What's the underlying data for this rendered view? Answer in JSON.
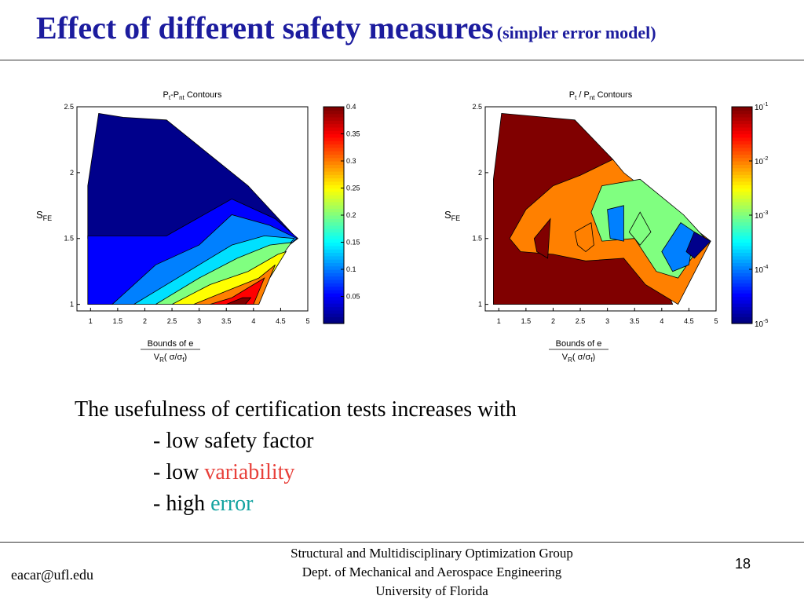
{
  "slide": {
    "title": "Effect of different safety measures",
    "subtitle": "(simpler error model)",
    "intro": "The usefulness of certification tests increases with",
    "bullets": [
      {
        "dash": "-",
        "text": "low safety factor",
        "highlight": ""
      },
      {
        "dash": "-",
        "text": "low",
        "highlight": "variability",
        "highlight_color": "#e8403a"
      },
      {
        "dash": "-",
        "text": "high",
        "highlight": "error",
        "highlight_color": "#13a3a0"
      }
    ],
    "footer": {
      "email": "eacar@ufl.edu",
      "org_line1": "Structural and Multidisciplinary Optimization Group",
      "org_line2": "Dept. of Mechanical and Aerospace Engineering",
      "org_line3": "University of Florida",
      "page": "18"
    }
  },
  "chart_data": [
    {
      "type": "heatmap",
      "title_parts": [
        "P",
        "t",
        "-P",
        "nt",
        "  Contours"
      ],
      "ylabel_parts": [
        "S",
        "FE"
      ],
      "xlabel1": "Bounds of e",
      "xlabel2_parts": [
        "V",
        "R",
        "( σ/σ",
        "f",
        ")"
      ],
      "xlim": [
        0.75,
        5
      ],
      "ylim": [
        0.95,
        2.5
      ],
      "xticks": [
        "1",
        "1.5",
        "2",
        "2.5",
        "3",
        "3.5",
        "4",
        "4.5",
        "5"
      ],
      "yticks": [
        "1",
        "1.5",
        "2",
        "2.5"
      ],
      "colorbar": {
        "scale": "linear",
        "range": [
          0,
          0.4
        ],
        "tick_labels": [
          "0.4",
          "0.35",
          "0.3",
          "0.25",
          "0.2",
          "0.15",
          "0.1",
          "0.05"
        ]
      },
      "regions": [
        {
          "level": 0.02,
          "color": "#00008b",
          "points": [
            [
              0.95,
              1.9
            ],
            [
              1.15,
              2.45
            ],
            [
              1.6,
              2.42
            ],
            [
              2.4,
              2.4
            ],
            [
              3.9,
              1.9
            ],
            [
              4.8,
              1.5
            ],
            [
              0.95,
              1.5
            ]
          ]
        },
        {
          "level": 0.06,
          "color": "#0000ff",
          "points": [
            [
              0.95,
              1.52
            ],
            [
              2.4,
              1.52
            ],
            [
              3.6,
              1.8
            ],
            [
              4.4,
              1.65
            ],
            [
              4.82,
              1.5
            ],
            [
              3.2,
              1.0
            ],
            [
              0.95,
              1.0
            ]
          ]
        },
        {
          "level": 0.1,
          "color": "#0080ff",
          "points": [
            [
              1.4,
              1.0
            ],
            [
              2.2,
              1.3
            ],
            [
              3.0,
              1.45
            ],
            [
              3.6,
              1.68
            ],
            [
              4.3,
              1.6
            ],
            [
              4.8,
              1.5
            ],
            [
              3.4,
              1.0
            ]
          ]
        },
        {
          "level": 0.15,
          "color": "#00e0ff",
          "points": [
            [
              1.8,
              1.0
            ],
            [
              2.8,
              1.25
            ],
            [
              3.6,
              1.45
            ],
            [
              4.2,
              1.52
            ],
            [
              4.75,
              1.5
            ],
            [
              3.7,
              1.0
            ]
          ]
        },
        {
          "level": 0.2,
          "color": "#80ff80",
          "points": [
            [
              2.2,
              1.0
            ],
            [
              3.0,
              1.2
            ],
            [
              3.7,
              1.35
            ],
            [
              4.3,
              1.45
            ],
            [
              4.7,
              1.47
            ],
            [
              3.9,
              1.0
            ]
          ]
        },
        {
          "level": 0.25,
          "color": "#ffff00",
          "points": [
            [
              2.5,
              1.0
            ],
            [
              3.2,
              1.15
            ],
            [
              3.9,
              1.25
            ],
            [
              4.45,
              1.38
            ],
            [
              4.6,
              1.4
            ],
            [
              4.0,
              1.0
            ]
          ]
        },
        {
          "level": 0.3,
          "color": "#ff8000",
          "points": [
            [
              2.9,
              1.0
            ],
            [
              3.5,
              1.1
            ],
            [
              4.1,
              1.2
            ],
            [
              4.4,
              1.3
            ],
            [
              4.1,
              1.0
            ]
          ]
        },
        {
          "level": 0.35,
          "color": "#ff0000",
          "points": [
            [
              3.2,
              1.0
            ],
            [
              3.6,
              1.05
            ],
            [
              4.0,
              1.15
            ],
            [
              4.2,
              1.2
            ],
            [
              4.0,
              1.0
            ]
          ]
        },
        {
          "level": 0.4,
          "color": "#800000",
          "points": [
            [
              3.5,
              1.0
            ],
            [
              3.8,
              1.05
            ],
            [
              3.95,
              1.05
            ],
            [
              3.85,
              1.0
            ]
          ]
        }
      ]
    },
    {
      "type": "heatmap",
      "title_parts": [
        "P",
        "t",
        " / P",
        "nt",
        "  Contours"
      ],
      "ylabel_parts": [
        "S",
        "FE"
      ],
      "xlabel1": "Bounds of e",
      "xlabel2_parts": [
        "V",
        "R",
        "( σ/σ",
        "f",
        ")"
      ],
      "xlim": [
        0.75,
        5
      ],
      "ylim": [
        0.95,
        2.5
      ],
      "xticks": [
        "1",
        "1.5",
        "2",
        "2.5",
        "3",
        "3.5",
        "4",
        "4.5",
        "5"
      ],
      "yticks": [
        "1",
        "1.5",
        "2",
        "2.5"
      ],
      "colorbar": {
        "scale": "log",
        "range": [
          1e-05,
          0.1
        ],
        "tick_labels": [
          {
            "base": "10",
            "exp": "-1"
          },
          {
            "base": "10",
            "exp": "-2"
          },
          {
            "base": "10",
            "exp": "-3"
          },
          {
            "base": "10",
            "exp": "-4"
          },
          {
            "base": "10",
            "exp": "-5"
          }
        ]
      },
      "regions": [
        {
          "level": 0.1,
          "color": "#800000",
          "points": [
            [
              0.9,
              1.0
            ],
            [
              0.9,
              1.95
            ],
            [
              1.05,
              2.45
            ],
            [
              2.4,
              2.4
            ],
            [
              3.1,
              2.1
            ],
            [
              4.2,
              1.0
            ]
          ]
        },
        {
          "level": 0.01,
          "color": "#ff8000",
          "points": [
            [
              3.1,
              2.1
            ],
            [
              3.3,
              2.0
            ],
            [
              4.9,
              1.48
            ],
            [
              4.3,
              1.0
            ],
            [
              3.7,
              1.15
            ],
            [
              3.3,
              1.35
            ],
            [
              2.6,
              1.33
            ],
            [
              2.0,
              1.38
            ],
            [
              1.4,
              1.4
            ],
            [
              1.2,
              1.5
            ],
            [
              1.5,
              1.72
            ],
            [
              2.0,
              1.9
            ],
            [
              2.5,
              1.98
            ]
          ]
        },
        {
          "level": 0.001,
          "color": "#80ff80",
          "points": [
            [
              2.9,
              1.9
            ],
            [
              3.6,
              1.95
            ],
            [
              4.4,
              1.68
            ],
            [
              4.8,
              1.5
            ],
            [
              4.3,
              1.2
            ],
            [
              3.9,
              1.25
            ],
            [
              3.5,
              1.5
            ],
            [
              2.9,
              1.48
            ],
            [
              2.7,
              1.7
            ]
          ]
        },
        {
          "level": 0.0001,
          "color": "#0080ff",
          "points": [
            [
              4.35,
              1.62
            ],
            [
              4.6,
              1.55
            ],
            [
              4.5,
              1.3
            ],
            [
              4.2,
              1.25
            ],
            [
              4.0,
              1.4
            ]
          ]
        },
        {
          "level": 1e-05,
          "color": "#00008b",
          "points": [
            [
              4.6,
              1.55
            ],
            [
              4.9,
              1.48
            ],
            [
              4.6,
              1.35
            ],
            [
              4.45,
              1.4
            ]
          ]
        }
      ],
      "holes": [
        {
          "level": 0.1,
          "color": "#800000",
          "points": [
            [
              1.65,
              1.5
            ],
            [
              1.95,
              1.65
            ],
            [
              1.9,
              1.35
            ],
            [
              1.7,
              1.4
            ]
          ]
        },
        {
          "level": 0.01,
          "color": "#ff8000",
          "points": [
            [
              2.4,
              1.55
            ],
            [
              2.7,
              1.62
            ],
            [
              2.75,
              1.45
            ],
            [
              2.6,
              1.4
            ],
            [
              2.45,
              1.45
            ]
          ]
        },
        {
          "level": 0.001,
          "color": "#80ff80",
          "points": [
            [
              3.4,
              1.55
            ],
            [
              3.6,
              1.7
            ],
            [
              3.8,
              1.55
            ],
            [
              3.6,
              1.45
            ]
          ]
        },
        {
          "level": 0.0001,
          "color": "#0080ff",
          "points": [
            [
              3.0,
              1.72
            ],
            [
              3.3,
              1.75
            ],
            [
              3.3,
              1.48
            ],
            [
              3.05,
              1.5
            ]
          ]
        }
      ]
    }
  ]
}
